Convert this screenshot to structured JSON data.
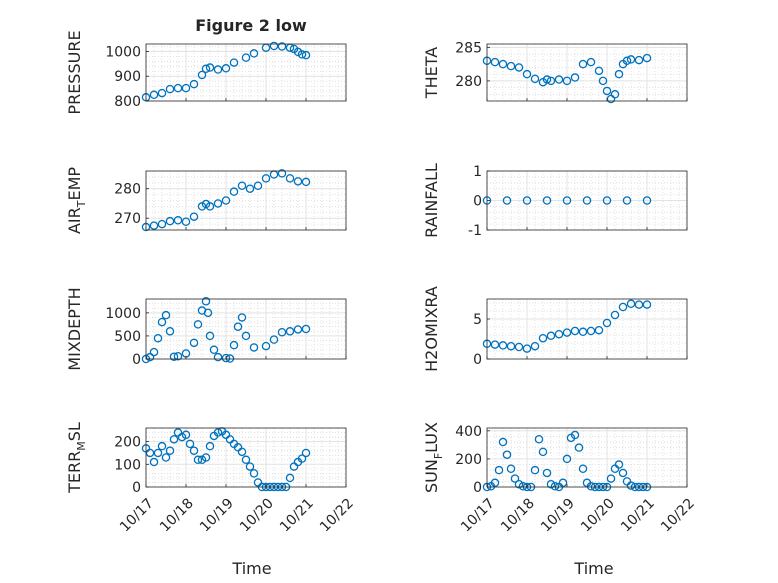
{
  "figure": {
    "title": "Figure 2 low",
    "series_color": "#0072BD",
    "grid": "on (major and minor dotted)",
    "marker": "open circle"
  },
  "chart_data": [
    {
      "type": "scatter",
      "panel": "top-left",
      "title": "Figure 2 low",
      "ylabel": "PRESSURE",
      "ylabel_sub": "",
      "ylabel_tail": "",
      "xlim": [
        0,
        5
      ],
      "ylim": [
        800,
        1030
      ],
      "yticks": [
        800,
        900,
        1000
      ],
      "ytick_labels": [
        "800",
        "900",
        "1000"
      ],
      "x": [
        0,
        0.2,
        0.4,
        0.6,
        0.8,
        1.0,
        1.2,
        1.4,
        1.5,
        1.6,
        1.8,
        2.0,
        2.2,
        2.5,
        2.7,
        3.0,
        3.2,
        3.4,
        3.6,
        3.7,
        3.8,
        3.9,
        4.0
      ],
      "y": [
        815,
        825,
        832,
        848,
        852,
        852,
        868,
        905,
        930,
        935,
        927,
        932,
        955,
        975,
        992,
        1015,
        1022,
        1020,
        1015,
        1010,
        998,
        988,
        985
      ]
    },
    {
      "type": "scatter",
      "panel": "top-right",
      "ylabel": "THETA",
      "ylabel_sub": "",
      "ylabel_tail": "",
      "xlim": [
        0,
        5
      ],
      "ylim": [
        277,
        285.5
      ],
      "yticks": [
        280,
        285
      ],
      "ytick_labels": [
        "280",
        "285"
      ],
      "x": [
        0,
        0.2,
        0.4,
        0.6,
        0.8,
        1.0,
        1.2,
        1.4,
        1.5,
        1.6,
        1.8,
        2.0,
        2.2,
        2.4,
        2.6,
        2.8,
        2.9,
        3.0,
        3.1,
        3.2,
        3.3,
        3.4,
        3.5,
        3.6,
        3.8,
        4.0
      ],
      "y": [
        283,
        282.8,
        282.5,
        282.2,
        282,
        281,
        280.3,
        279.8,
        280.2,
        280,
        280.2,
        280,
        280.5,
        282.5,
        282.8,
        281.5,
        280,
        278.5,
        277.3,
        278,
        281,
        282.5,
        283,
        283.2,
        283.1,
        283.4
      ]
    },
    {
      "type": "scatter",
      "panel": "second-left",
      "ylabel": "AIR",
      "ylabel_sub": "T",
      "ylabel_tail": "EMP",
      "xlim": [
        0,
        5
      ],
      "ylim": [
        266,
        286
      ],
      "yticks": [
        270,
        280
      ],
      "ytick_labels": [
        "270",
        "280"
      ],
      "x": [
        0,
        0.2,
        0.4,
        0.6,
        0.8,
        1.0,
        1.2,
        1.4,
        1.5,
        1.6,
        1.8,
        2.0,
        2.2,
        2.4,
        2.6,
        2.8,
        3.0,
        3.2,
        3.4,
        3.6,
        3.8,
        4.0
      ],
      "y": [
        267,
        267.5,
        268,
        269,
        269.3,
        268.8,
        270.5,
        274,
        274.8,
        274,
        275,
        276,
        279,
        281,
        280,
        281,
        283.5,
        284.8,
        285.2,
        283.5,
        282.5,
        282.3
      ]
    },
    {
      "type": "scatter",
      "panel": "second-right",
      "ylabel": "RAINFALL",
      "ylabel_sub": "",
      "ylabel_tail": "",
      "xlim": [
        0,
        5
      ],
      "ylim": [
        -1,
        1
      ],
      "yticks": [
        -1,
        0,
        1
      ],
      "ytick_labels": [
        "-1",
        "0",
        "1"
      ],
      "x": [
        0,
        0.5,
        1.0,
        1.5,
        2.0,
        2.5,
        3.0,
        3.5,
        4.0
      ],
      "y": [
        0,
        0,
        0,
        0,
        0,
        0,
        0,
        0,
        0
      ]
    },
    {
      "type": "scatter",
      "panel": "third-left",
      "ylabel": "MIXDEPTH",
      "ylabel_sub": "",
      "ylabel_tail": "",
      "xlim": [
        0,
        5
      ],
      "ylim": [
        0,
        1300
      ],
      "yticks": [
        0,
        500,
        1000
      ],
      "ytick_labels": [
        "0",
        "500",
        "1000"
      ],
      "x": [
        0,
        0.1,
        0.2,
        0.3,
        0.4,
        0.5,
        0.6,
        0.7,
        0.8,
        1.0,
        1.2,
        1.3,
        1.4,
        1.5,
        1.55,
        1.6,
        1.7,
        1.8,
        2.0,
        2.1,
        2.2,
        2.3,
        2.4,
        2.5,
        2.7,
        3.0,
        3.2,
        3.4,
        3.6,
        3.8,
        4.0
      ],
      "y": [
        0,
        40,
        150,
        450,
        800,
        950,
        600,
        50,
        60,
        120,
        350,
        750,
        1050,
        1250,
        1000,
        500,
        200,
        40,
        20,
        10,
        300,
        700,
        900,
        500,
        250,
        280,
        420,
        580,
        600,
        640,
        650
      ]
    },
    {
      "type": "scatter",
      "panel": "third-right",
      "ylabel": "H2OMIXRA",
      "ylabel_sub": "",
      "ylabel_tail": "",
      "xlim": [
        0,
        5
      ],
      "ylim": [
        0,
        7.5
      ],
      "yticks": [
        0,
        5
      ],
      "ytick_labels": [
        "0",
        "5"
      ],
      "x": [
        0,
        0.2,
        0.4,
        0.6,
        0.8,
        1.0,
        1.2,
        1.4,
        1.6,
        1.8,
        2.0,
        2.2,
        2.4,
        2.6,
        2.8,
        3.0,
        3.2,
        3.4,
        3.6,
        3.8,
        4.0
      ],
      "y": [
        1.9,
        1.8,
        1.7,
        1.6,
        1.5,
        1.3,
        1.6,
        2.6,
        2.9,
        3.1,
        3.3,
        3.5,
        3.4,
        3.5,
        3.6,
        4.5,
        5.5,
        6.5,
        6.9,
        6.8,
        6.8
      ]
    },
    {
      "type": "scatter",
      "panel": "bottom-left",
      "ylabel": "TERR",
      "ylabel_sub": "M",
      "ylabel_tail": "SL",
      "xlim": [
        0,
        5
      ],
      "ylim": [
        0,
        260
      ],
      "yticks": [
        0,
        100,
        200
      ],
      "ytick_labels": [
        "0",
        "100",
        "200"
      ],
      "x": [
        0,
        0.1,
        0.2,
        0.3,
        0.4,
        0.5,
        0.6,
        0.7,
        0.8,
        0.9,
        1.0,
        1.1,
        1.2,
        1.3,
        1.4,
        1.5,
        1.6,
        1.7,
        1.8,
        1.9,
        2.0,
        2.1,
        2.2,
        2.3,
        2.4,
        2.5,
        2.6,
        2.7,
        2.8,
        2.9,
        3.0,
        3.1,
        3.2,
        3.3,
        3.4,
        3.5,
        3.6,
        3.7,
        3.8,
        3.9,
        4.0
      ],
      "y": [
        170,
        150,
        110,
        150,
        180,
        130,
        160,
        210,
        240,
        220,
        230,
        190,
        160,
        120,
        120,
        130,
        180,
        225,
        240,
        245,
        230,
        210,
        190,
        175,
        155,
        120,
        90,
        60,
        20,
        0,
        0,
        0,
        0,
        0,
        0,
        0,
        40,
        90,
        110,
        125,
        150
      ]
    },
    {
      "type": "scatter",
      "panel": "bottom-right",
      "ylabel": "SUN",
      "ylabel_sub": "F",
      "ylabel_tail": "LUX",
      "xlim": [
        0,
        5
      ],
      "ylim": [
        0,
        420
      ],
      "yticks": [
        0,
        200,
        400
      ],
      "ytick_labels": [
        "0",
        "200",
        "400"
      ],
      "x": [
        0,
        0.1,
        0.2,
        0.3,
        0.4,
        0.5,
        0.6,
        0.7,
        0.8,
        0.9,
        1.0,
        1.1,
        1.2,
        1.3,
        1.4,
        1.5,
        1.6,
        1.7,
        1.8,
        1.9,
        2.0,
        2.1,
        2.2,
        2.3,
        2.4,
        2.5,
        2.6,
        2.7,
        2.8,
        2.9,
        3.0,
        3.1,
        3.2,
        3.3,
        3.4,
        3.5,
        3.6,
        3.7,
        3.8,
        3.9,
        4.0
      ],
      "y": [
        0,
        5,
        30,
        120,
        320,
        230,
        130,
        60,
        20,
        5,
        0,
        0,
        120,
        340,
        250,
        100,
        20,
        5,
        0,
        30,
        200,
        350,
        370,
        280,
        130,
        30,
        5,
        0,
        0,
        0,
        0,
        60,
        130,
        160,
        100,
        40,
        10,
        0,
        0,
        0,
        0
      ]
    }
  ],
  "x_axis": {
    "ticks": [
      0,
      1,
      2,
      3,
      4,
      5
    ],
    "tick_labels": [
      "10/17",
      "10/18",
      "10/19",
      "10/20",
      "10/21",
      "10/22"
    ],
    "xlabel": "Time"
  }
}
